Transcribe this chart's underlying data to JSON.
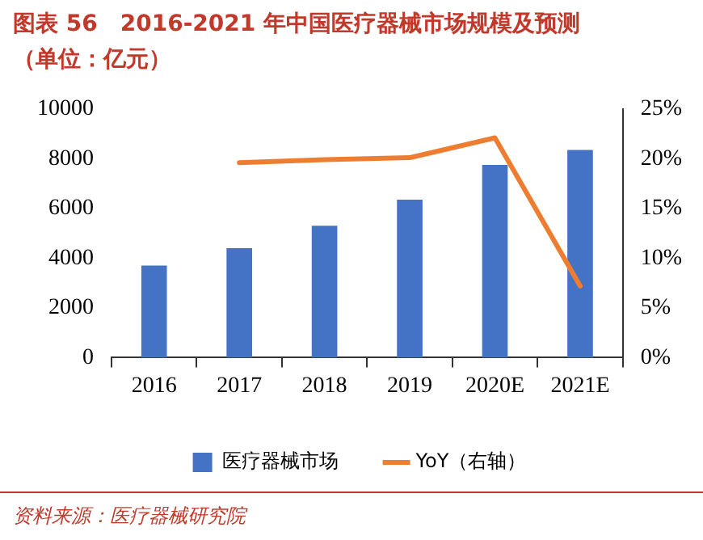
{
  "chart_data": {
    "type": "bar",
    "title": "图表 56　2016-2021 年中国医疗器械市场规模及预测（单位：亿元）",
    "categories": [
      "2016",
      "2017",
      "2018",
      "2019",
      "2020E",
      "2021E"
    ],
    "series": [
      {
        "name": "医疗器械市场",
        "color": "#4472c4",
        "values": [
          3700,
          4400,
          5300,
          6350,
          7750,
          8350
        ]
      },
      {
        "name": "YoY（右轴）",
        "type": "line",
        "axis": "y2",
        "color": "#ed7d31",
        "values": [
          null,
          19.6,
          19.9,
          20.1,
          22.1,
          7.2
        ]
      }
    ],
    "ylim": [
      0,
      10000
    ],
    "yticks": [
      0,
      2000,
      4000,
      6000,
      8000,
      10000
    ],
    "y2lim": [
      0,
      25
    ],
    "y2ticks": [
      {
        "value": 0,
        "label": "0%"
      },
      {
        "value": 5,
        "label": "5%"
      },
      {
        "value": 10,
        "label": "10%"
      },
      {
        "value": 15,
        "label": "15%"
      },
      {
        "value": 20,
        "label": "20%"
      },
      {
        "value": 25,
        "label": "25%"
      }
    ],
    "grid": false,
    "legend": "bottom",
    "annotations": [
      "资料来源：医疗器械研究院"
    ]
  }
}
